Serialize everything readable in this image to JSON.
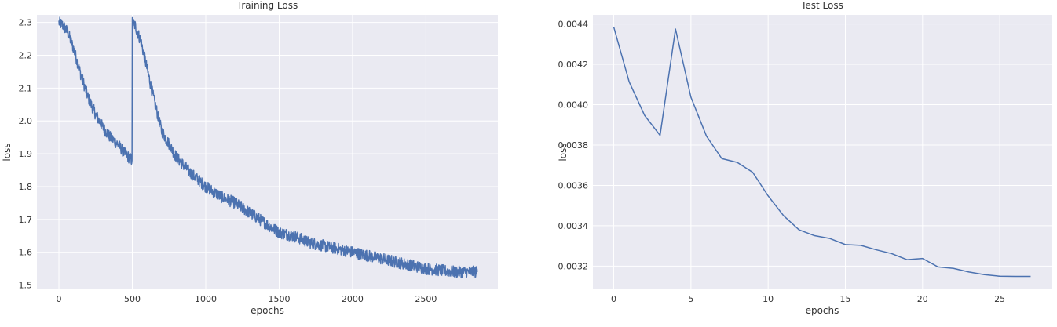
{
  "chart_data": [
    {
      "type": "line",
      "title": "Training Loss",
      "xlabel": "epochs",
      "ylabel": "loss",
      "xlim": [
        -150,
        2990
      ],
      "ylim": [
        1.487,
        2.323
      ],
      "xticks": [
        0,
        500,
        1000,
        1500,
        2000,
        2500
      ],
      "xtick_labels": [
        "0",
        "500",
        "1000",
        "1500",
        "2000",
        "2500"
      ],
      "yticks": [
        1.5,
        1.6,
        1.7,
        1.8,
        1.9,
        2.0,
        2.1,
        2.2,
        2.3
      ],
      "ytick_labels": [
        "1.5",
        "1.6",
        "1.7",
        "1.8",
        "1.9",
        "2.0",
        "2.1",
        "2.2",
        "2.3"
      ],
      "grid": true,
      "series": [
        {
          "color": "#4c72b0",
          "noise": 0.018,
          "x": [
            0,
            30,
            60,
            100,
            150,
            200,
            250,
            300,
            350,
            400,
            450,
            498,
            500,
            520,
            560,
            600,
            650,
            700,
            800,
            900,
            1000,
            1100,
            1200,
            1300,
            1400,
            1500,
            1600,
            1700,
            1800,
            1900,
            2000,
            2100,
            2200,
            2300,
            2400,
            2500,
            2600,
            2700,
            2850
          ],
          "y": [
            2.3,
            2.29,
            2.27,
            2.22,
            2.14,
            2.07,
            2.02,
            1.98,
            1.95,
            1.93,
            1.9,
            1.88,
            2.3,
            2.29,
            2.24,
            2.16,
            2.06,
            1.97,
            1.89,
            1.84,
            1.8,
            1.77,
            1.75,
            1.72,
            1.69,
            1.66,
            1.65,
            1.63,
            1.62,
            1.61,
            1.6,
            1.59,
            1.58,
            1.57,
            1.56,
            1.55,
            1.545,
            1.54,
            1.54
          ]
        }
      ]
    },
    {
      "type": "line",
      "title": "Test Loss",
      "xlabel": "epochs",
      "ylabel": "loss",
      "xlim": [
        -1.35,
        28.35
      ],
      "ylim": [
        0.003085,
        0.004445
      ],
      "xticks": [
        0,
        5,
        10,
        15,
        20,
        25
      ],
      "xtick_labels": [
        "0",
        "5",
        "10",
        "15",
        "20",
        "25"
      ],
      "yticks": [
        0.0032,
        0.0034,
        0.0036,
        0.0038,
        0.004,
        0.0042,
        0.0044
      ],
      "ytick_labels": [
        "0.0032",
        "0.0034",
        "0.0036",
        "0.0038",
        "0.0040",
        "0.0042",
        "0.0044"
      ],
      "grid": true,
      "series": [
        {
          "color": "#4c72b0",
          "x": [
            0,
            1,
            2,
            3,
            4,
            5,
            6,
            7,
            8,
            9,
            10,
            11,
            12,
            13,
            14,
            15,
            16,
            17,
            18,
            19,
            20,
            21,
            22,
            23,
            24,
            25,
            26,
            27
          ],
          "y": [
            0.004385,
            0.004113,
            0.003947,
            0.003848,
            0.004375,
            0.004037,
            0.003845,
            0.003733,
            0.003714,
            0.003665,
            0.003548,
            0.00345,
            0.00338,
            0.003351,
            0.003337,
            0.003307,
            0.003303,
            0.003281,
            0.003262,
            0.003232,
            0.003238,
            0.003196,
            0.003189,
            0.003171,
            0.003158,
            0.00315,
            0.003149,
            0.003149
          ]
        }
      ]
    }
  ]
}
